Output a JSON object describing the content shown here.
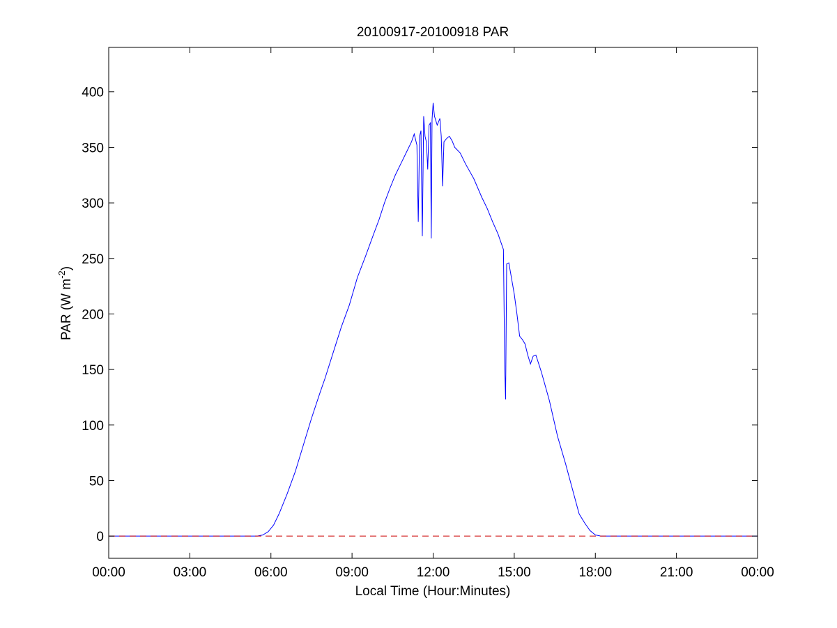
{
  "chart_data": {
    "type": "line",
    "title": "20100917-20100918 PAR",
    "xlabel": "Local Time (Hour:Minutes)",
    "ylabel": "PAR (W m",
    "ylabel_superscript": "-2",
    "ylabel_close": ")",
    "x_units": "hours since 00:00 local time",
    "xlim": [
      0,
      24
    ],
    "ylim": [
      -20,
      440
    ],
    "x_ticks": [
      {
        "value": 0,
        "label": "00:00"
      },
      {
        "value": 3,
        "label": "03:00"
      },
      {
        "value": 6,
        "label": "06:00"
      },
      {
        "value": 9,
        "label": "09:00"
      },
      {
        "value": 12,
        "label": "12:00"
      },
      {
        "value": 15,
        "label": "15:00"
      },
      {
        "value": 18,
        "label": "18:00"
      },
      {
        "value": 21,
        "label": "21:00"
      },
      {
        "value": 24,
        "label": "00:00"
      }
    ],
    "y_ticks": [
      {
        "value": 0,
        "label": "0"
      },
      {
        "value": 50,
        "label": "50"
      },
      {
        "value": 100,
        "label": "100"
      },
      {
        "value": 150,
        "label": "150"
      },
      {
        "value": 200,
        "label": "200"
      },
      {
        "value": 250,
        "label": "250"
      },
      {
        "value": 300,
        "label": "300"
      },
      {
        "value": 350,
        "label": "350"
      },
      {
        "value": 400,
        "label": "400"
      }
    ],
    "grid": false,
    "legend": "none",
    "series": [
      {
        "style": "solid",
        "color": "#0000ff",
        "points": [
          [
            0,
            0
          ],
          [
            5.5,
            0
          ],
          [
            5.7,
            1
          ],
          [
            5.9,
            4
          ],
          [
            6.1,
            10
          ],
          [
            6.3,
            20
          ],
          [
            6.6,
            38
          ],
          [
            6.9,
            58
          ],
          [
            7.2,
            82
          ],
          [
            7.5,
            106
          ],
          [
            7.8,
            128
          ],
          [
            8.0,
            142
          ],
          [
            8.3,
            165
          ],
          [
            8.6,
            188
          ],
          [
            8.9,
            208
          ],
          [
            9.2,
            233
          ],
          [
            9.5,
            252
          ],
          [
            9.8,
            272
          ],
          [
            10.0,
            285
          ],
          [
            10.2,
            300
          ],
          [
            10.4,
            313
          ],
          [
            10.6,
            325
          ],
          [
            10.8,
            335
          ],
          [
            11.0,
            345
          ],
          [
            11.2,
            355
          ],
          [
            11.3,
            362
          ],
          [
            11.4,
            352
          ],
          [
            11.45,
            283
          ],
          [
            11.5,
            360
          ],
          [
            11.55,
            365
          ],
          [
            11.6,
            270
          ],
          [
            11.65,
            378
          ],
          [
            11.7,
            360
          ],
          [
            11.75,
            355
          ],
          [
            11.8,
            330
          ],
          [
            11.85,
            370
          ],
          [
            11.9,
            372
          ],
          [
            11.93,
            268
          ],
          [
            11.96,
            375
          ],
          [
            12.0,
            390
          ],
          [
            12.05,
            378
          ],
          [
            12.15,
            370
          ],
          [
            12.25,
            376
          ],
          [
            12.3,
            360
          ],
          [
            12.35,
            315
          ],
          [
            12.4,
            355
          ],
          [
            12.5,
            358
          ],
          [
            12.6,
            360
          ],
          [
            12.7,
            356
          ],
          [
            12.8,
            350
          ],
          [
            13.0,
            345
          ],
          [
            13.2,
            335
          ],
          [
            13.5,
            322
          ],
          [
            13.8,
            305
          ],
          [
            14.0,
            295
          ],
          [
            14.2,
            283
          ],
          [
            14.4,
            272
          ],
          [
            14.6,
            258
          ],
          [
            14.65,
            150
          ],
          [
            14.68,
            123
          ],
          [
            14.72,
            245
          ],
          [
            14.8,
            246
          ],
          [
            14.9,
            232
          ],
          [
            15.0,
            218
          ],
          [
            15.1,
            200
          ],
          [
            15.2,
            180
          ],
          [
            15.3,
            177
          ],
          [
            15.4,
            173
          ],
          [
            15.5,
            163
          ],
          [
            15.6,
            155
          ],
          [
            15.7,
            162
          ],
          [
            15.8,
            163
          ],
          [
            16.0,
            148
          ],
          [
            16.3,
            122
          ],
          [
            16.6,
            90
          ],
          [
            16.9,
            65
          ],
          [
            17.2,
            38
          ],
          [
            17.4,
            20
          ],
          [
            17.6,
            12
          ],
          [
            17.8,
            5
          ],
          [
            18.0,
            1
          ],
          [
            18.2,
            0
          ],
          [
            24,
            0
          ]
        ]
      },
      {
        "style": "dashed",
        "color": "#cc0000",
        "points": [
          [
            0,
            0
          ],
          [
            24,
            0
          ]
        ]
      }
    ]
  }
}
